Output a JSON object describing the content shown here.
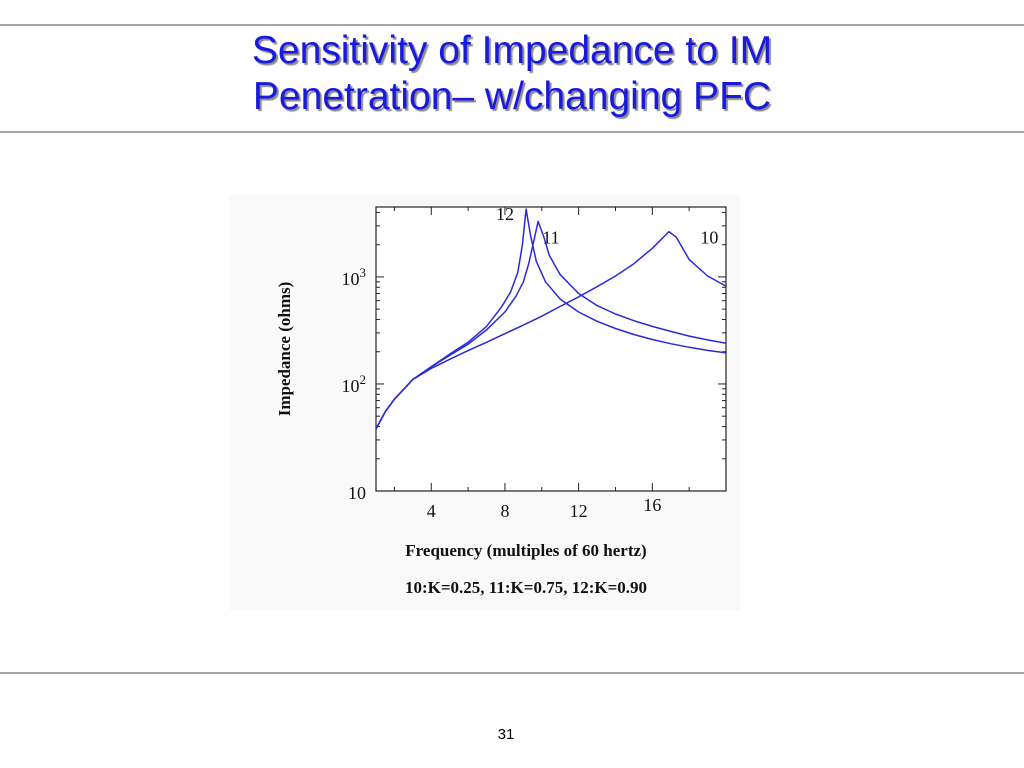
{
  "slide": {
    "title_line1": "Sensitivity of Impedance to IM",
    "title_line2": "Penetration– w/changing PFC",
    "page_number": "31",
    "title_color": "#1a1adc"
  },
  "chart_data": {
    "type": "line",
    "title": "",
    "xlabel": "Frequency (multiples of 60 hertz)",
    "ylabel": "Impedance (ohms)",
    "caption": "10:K=0.25, 11:K=0.75, 12:K=0.90",
    "x_scale": "linear",
    "y_scale": "log",
    "xlim": [
      1,
      20
    ],
    "ylim": [
      10,
      4500
    ],
    "x_ticks": [
      {
        "value": 4,
        "label": "4"
      },
      {
        "value": 8,
        "label": "8"
      },
      {
        "value": 12,
        "label": "12"
      },
      {
        "value": 16,
        "label": "16"
      }
    ],
    "y_ticks": [
      {
        "value": 10,
        "base": "10",
        "exp": ""
      },
      {
        "value": 100,
        "base": "10",
        "exp": "2"
      },
      {
        "value": 1000,
        "base": "10",
        "exp": "3"
      }
    ],
    "grid": false,
    "legend": "none",
    "line_color": "#2a2ad8",
    "series": [
      {
        "name": "10",
        "points": [
          [
            1,
            38
          ],
          [
            1.5,
            55
          ],
          [
            2,
            72
          ],
          [
            3,
            110
          ],
          [
            4,
            140
          ],
          [
            5,
            170
          ],
          [
            6,
            205
          ],
          [
            7,
            245
          ],
          [
            8,
            295
          ],
          [
            9,
            355
          ],
          [
            10,
            430
          ],
          [
            11,
            530
          ],
          [
            12,
            650
          ],
          [
            13,
            810
          ],
          [
            14,
            1020
          ],
          [
            15,
            1330
          ],
          [
            16,
            1850
          ],
          [
            16.5,
            2250
          ],
          [
            16.9,
            2650
          ],
          [
            17.3,
            2350
          ],
          [
            18,
            1450
          ],
          [
            19,
            1020
          ],
          [
            20,
            820
          ]
        ]
      },
      {
        "name": "11",
        "points": [
          [
            1,
            38
          ],
          [
            1.5,
            55
          ],
          [
            2,
            72
          ],
          [
            3,
            110
          ],
          [
            4,
            145
          ],
          [
            5,
            185
          ],
          [
            6,
            235
          ],
          [
            7,
            320
          ],
          [
            8,
            470
          ],
          [
            8.6,
            660
          ],
          [
            9,
            900
          ],
          [
            9.3,
            1350
          ],
          [
            9.6,
            2300
          ],
          [
            9.8,
            3300
          ],
          [
            10.1,
            2400
          ],
          [
            10.4,
            1600
          ],
          [
            11,
            1050
          ],
          [
            12,
            700
          ],
          [
            13,
            540
          ],
          [
            14,
            450
          ],
          [
            15,
            390
          ],
          [
            16,
            345
          ],
          [
            17,
            310
          ],
          [
            18,
            280
          ],
          [
            19,
            258
          ],
          [
            20,
            240
          ]
        ]
      },
      {
        "name": "12",
        "points": [
          [
            1,
            38
          ],
          [
            1.5,
            55
          ],
          [
            2,
            72
          ],
          [
            3,
            110
          ],
          [
            4,
            145
          ],
          [
            5,
            190
          ],
          [
            6,
            245
          ],
          [
            7,
            345
          ],
          [
            7.8,
            520
          ],
          [
            8.3,
            720
          ],
          [
            8.7,
            1100
          ],
          [
            8.95,
            2000
          ],
          [
            9.15,
            4300
          ],
          [
            9.4,
            2400
          ],
          [
            9.7,
            1400
          ],
          [
            10.2,
            900
          ],
          [
            11,
            620
          ],
          [
            12,
            470
          ],
          [
            13,
            385
          ],
          [
            14,
            330
          ],
          [
            15,
            290
          ],
          [
            16,
            260
          ],
          [
            17,
            238
          ],
          [
            18,
            220
          ],
          [
            19,
            206
          ],
          [
            20,
            195
          ]
        ]
      }
    ],
    "annotations": [
      {
        "text": "12",
        "x": 8.0,
        "y": 3400
      },
      {
        "text": "11",
        "x": 10.5,
        "y": 2050
      },
      {
        "text": "10",
        "x": 19.1,
        "y": 2050
      }
    ]
  }
}
